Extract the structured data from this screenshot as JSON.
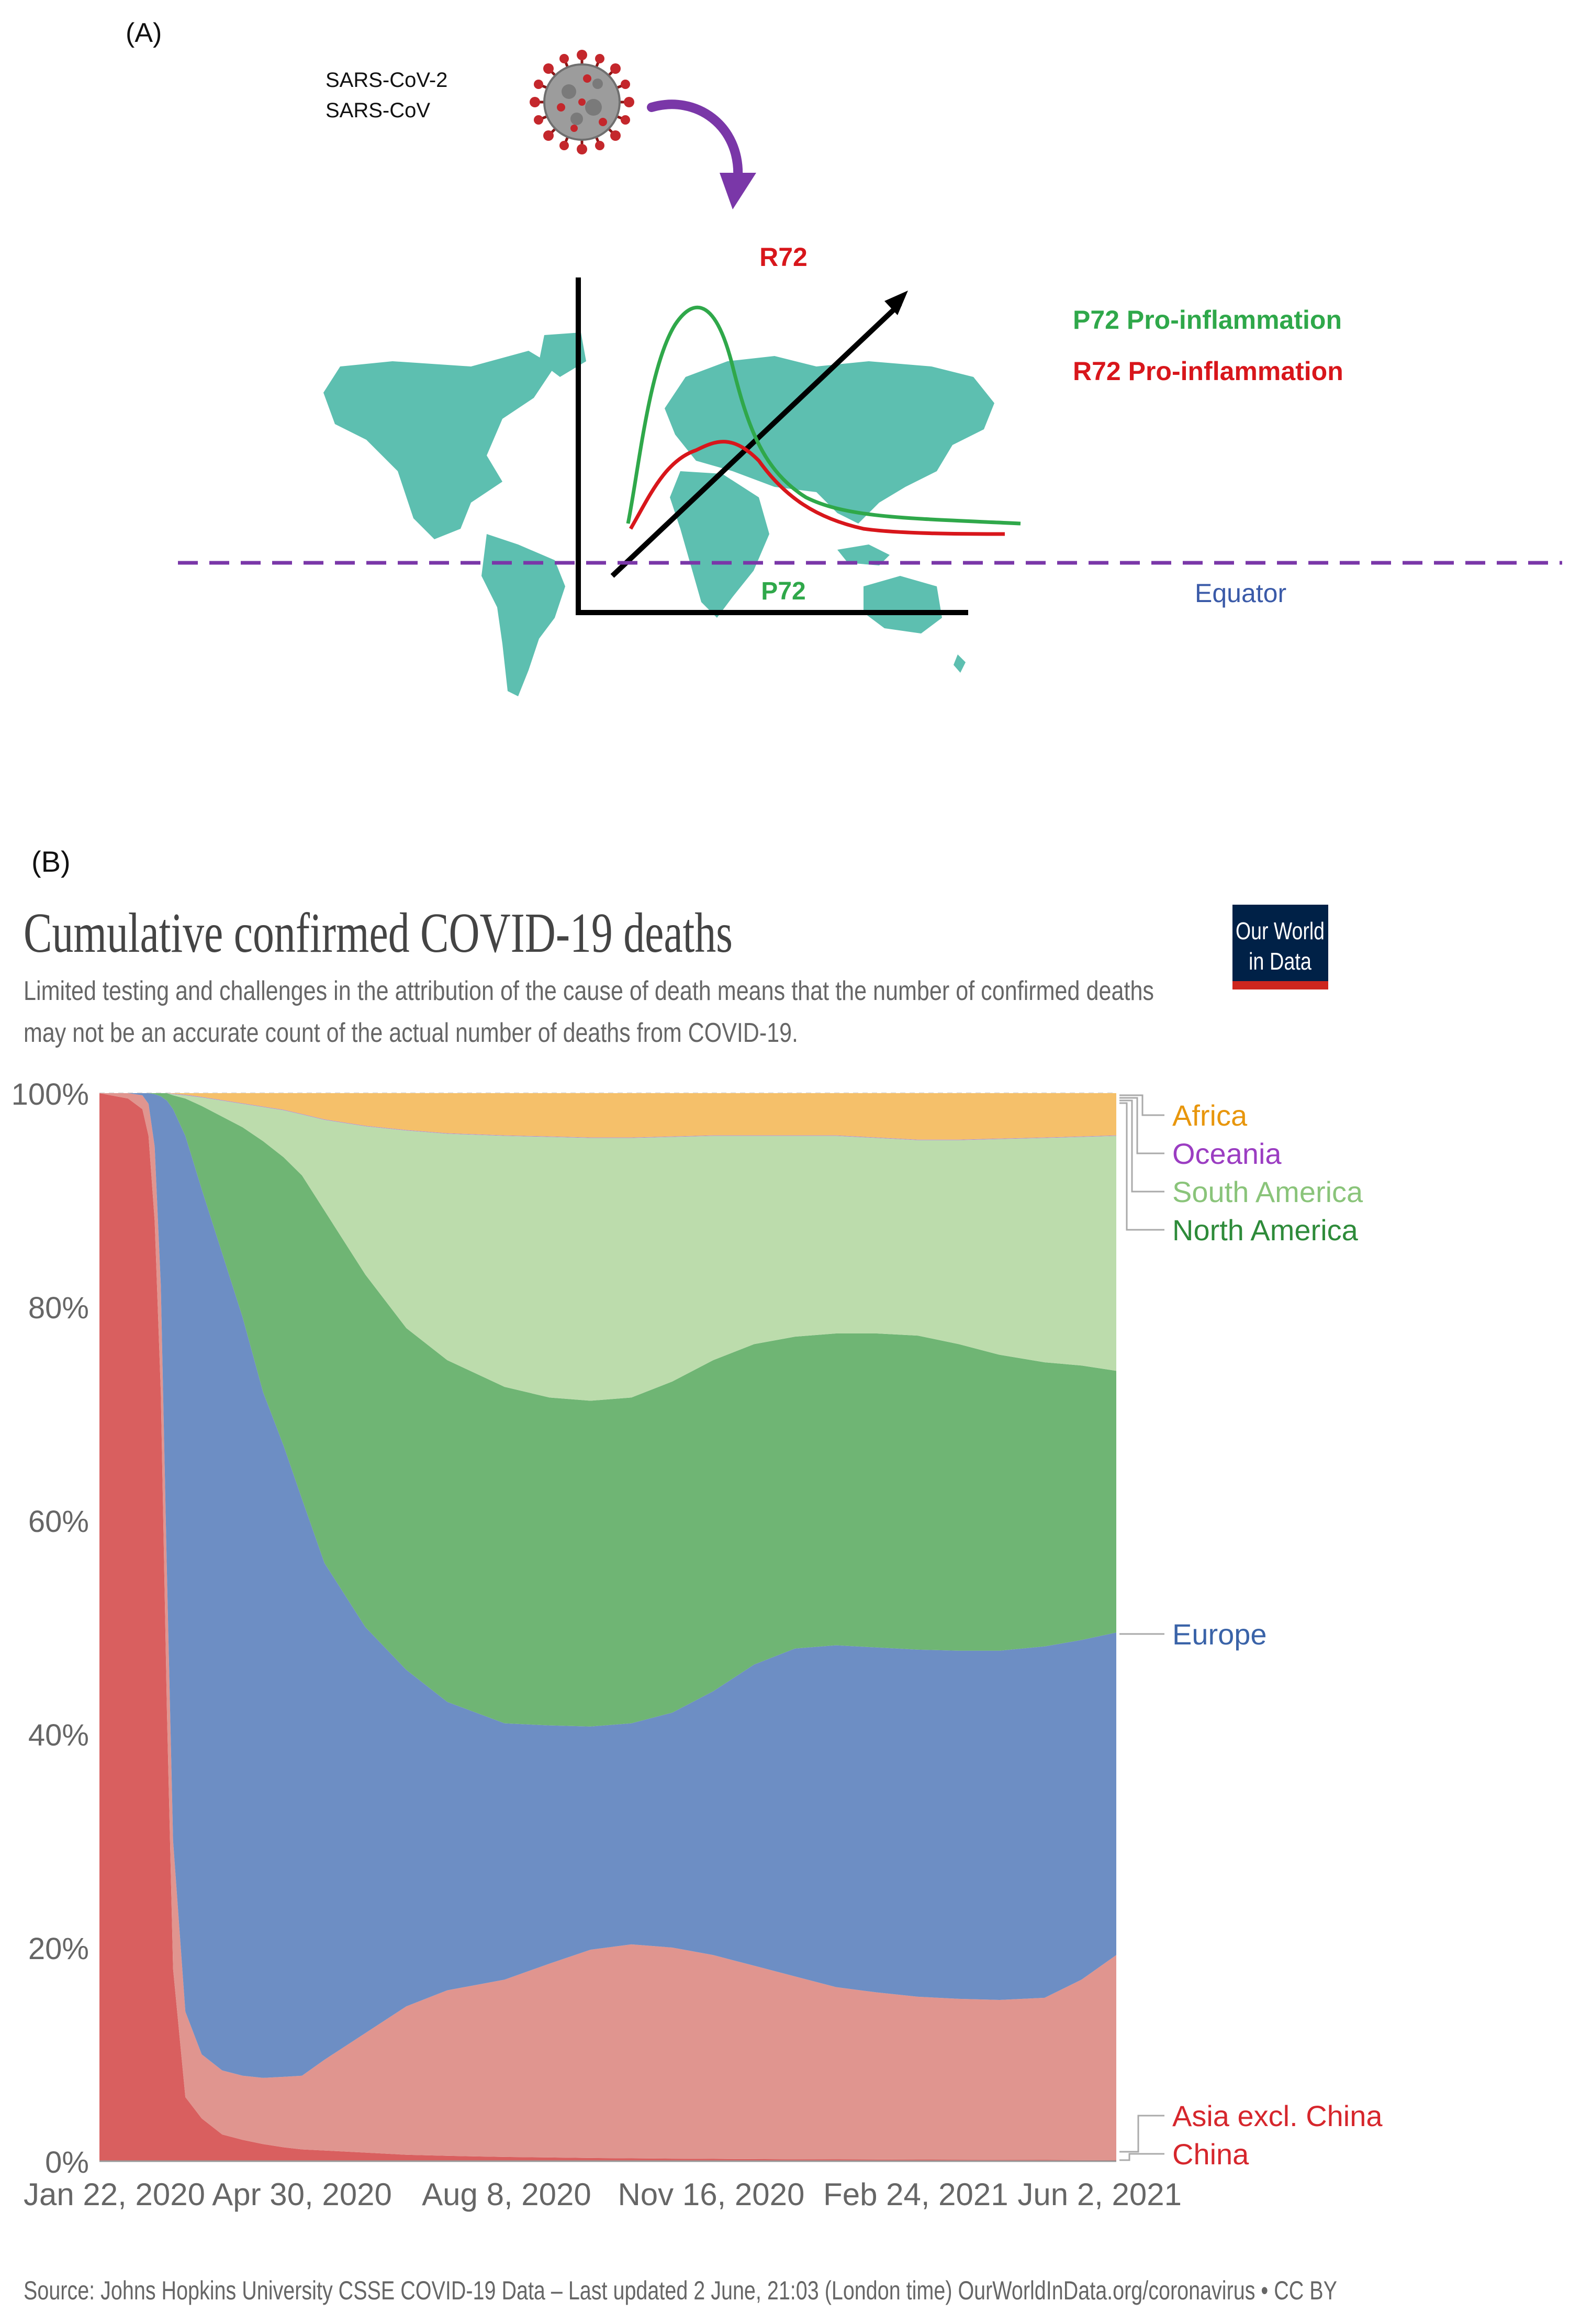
{
  "panel_a": {
    "label": "(A)",
    "virus_names": [
      "SARS-CoV-2",
      "SARS-CoV"
    ],
    "r72_label": "R72",
    "p72_label": "P72",
    "legend_p72": "P72 Pro-inflammation",
    "legend_r72": "R72 Pro-inflammation",
    "equator_label": "Equator",
    "colors": {
      "green": "#2fa84a",
      "red": "#d8161b",
      "purple": "#7a37a8",
      "map": "#5dbfb0",
      "equator": "#3a5aa8"
    }
  },
  "panel_b": {
    "label": "(B)",
    "logo_line1": "Our World",
    "logo_line2": "in Data",
    "source": "Source: Johns Hopkins University CSSE COVID-19 Data – Last updated 2 June, 21:03 (London time) OurWorldInData.org/coronavirus • CC BY"
  },
  "chart_data": {
    "type": "area",
    "stacked": true,
    "normalized": true,
    "title": "Cumulative confirmed COVID-19 deaths",
    "subtitle_lines": [
      "Limited testing and challenges in the attribution of the cause of death means that the number of confirmed deaths",
      "may not be an accurate count of the actual number of deaths from COVID-19."
    ],
    "x_days": [
      0,
      14,
      21,
      24,
      27,
      30,
      33,
      36,
      42,
      50,
      60,
      70,
      80,
      90,
      99,
      110,
      130,
      150,
      170,
      198,
      220,
      240,
      260,
      280,
      300,
      320,
      340,
      360,
      380,
      400,
      420,
      440,
      462,
      480,
      497
    ],
    "x_ticks": [
      {
        "day": 0,
        "label": "Jan 22, 2020"
      },
      {
        "day": 99,
        "label": "Apr 30, 2020"
      },
      {
        "day": 199,
        "label": "Aug 8, 2020"
      },
      {
        "day": 299,
        "label": "Nov 16, 2020"
      },
      {
        "day": 399,
        "label": "Feb 24, 2021"
      },
      {
        "day": 497,
        "label": "Jun 2, 2021"
      }
    ],
    "y_ticks": [
      "0%",
      "20%",
      "40%",
      "60%",
      "80%",
      "100%"
    ],
    "ylim": [
      0,
      100
    ],
    "series": [
      {
        "name": "China",
        "color": "#d95f5f",
        "label_color": "#d6262c",
        "cumulative": [
          100,
          99.5,
          98.5,
          96,
          88,
          72,
          42,
          18,
          6,
          4,
          2.5,
          2.0,
          1.6,
          1.3,
          1.1,
          1.0,
          0.8,
          0.6,
          0.5,
          0.4,
          0.35,
          0.3,
          0.27,
          0.24,
          0.22,
          0.2,
          0.18,
          0.17,
          0.16,
          0.15,
          0.14,
          0.13,
          0.12,
          0.11,
          0.1
        ]
      },
      {
        "name": "Asia excl. China",
        "color": "#e0958f",
        "label_color": "#d6262c",
        "cumulative": [
          100,
          100,
          99.8,
          99,
          95,
          82,
          55,
          30,
          14,
          10,
          8.5,
          8,
          7.8,
          7.9,
          8.0,
          9.5,
          12,
          14.5,
          16,
          17,
          18.5,
          19.8,
          20.3,
          20.0,
          19.3,
          18.3,
          17.3,
          16.3,
          15.8,
          15.4,
          15.2,
          15.1,
          15.3,
          17.0,
          19.3
        ]
      },
      {
        "name": "Europe",
        "color": "#6d8ec4",
        "label_color": "#3a63a8",
        "cumulative": [
          100,
          100,
          100,
          100,
          99.9,
          99.7,
          99.3,
          98.5,
          96,
          91,
          85,
          79,
          72,
          67,
          62,
          56,
          50,
          46,
          43,
          41,
          40.8,
          40.7,
          41,
          42,
          44,
          46.5,
          48,
          48.3,
          48.1,
          47.9,
          47.8,
          47.8,
          48.2,
          48.8,
          49.5
        ]
      },
      {
        "name": "North America",
        "color": "#6fb574",
        "label_color": "#2e8b3a",
        "cumulative": [
          100,
          100,
          100,
          100,
          100,
          100,
          100,
          99.8,
          99.5,
          98.8,
          97.8,
          96.8,
          95.5,
          94,
          92.3,
          89,
          83,
          78,
          75,
          72.5,
          71.5,
          71.2,
          71.5,
          73,
          75,
          76.5,
          77.2,
          77.5,
          77.5,
          77.3,
          76.5,
          75.5,
          74.8,
          74.5,
          74.0
        ]
      },
      {
        "name": "South America",
        "color": "#bcdcac",
        "label_color": "#8ac47a",
        "cumulative": [
          100,
          100,
          100,
          100,
          100,
          100,
          100,
          99.9,
          99.8,
          99.6,
          99.3,
          99.0,
          98.7,
          98.4,
          98.0,
          97.5,
          96.9,
          96.5,
          96.2,
          96.0,
          95.9,
          95.8,
          95.8,
          95.9,
          96.0,
          96.0,
          96.0,
          96.0,
          95.8,
          95.6,
          95.6,
          95.7,
          95.8,
          95.9,
          96.0
        ]
      },
      {
        "name": "Oceania",
        "color": "#b28ad0",
        "label_color": "#9b3dc2",
        "cumulative": [
          100,
          100,
          100,
          100,
          100,
          100,
          100,
          99.95,
          99.85,
          99.65,
          99.35,
          99.05,
          98.75,
          98.45,
          98.05,
          97.55,
          96.95,
          96.55,
          96.25,
          96.05,
          95.95,
          95.85,
          95.85,
          95.95,
          96.05,
          96.05,
          96.05,
          96.05,
          95.85,
          95.65,
          95.65,
          95.75,
          95.85,
          95.95,
          96.05
        ]
      },
      {
        "name": "Africa",
        "color": "#f5c06a",
        "label_color": "#e8960c",
        "cumulative": [
          100,
          100,
          100,
          100,
          100,
          100,
          100,
          100,
          100,
          100,
          100,
          100,
          100,
          100,
          100,
          100,
          100,
          100,
          100,
          100,
          100,
          100,
          100,
          100,
          100,
          100,
          100,
          100,
          100,
          100,
          100,
          100,
          100,
          100,
          100
        ]
      }
    ],
    "legend": [
      "Africa",
      "Oceania",
      "South America",
      "North America",
      "Europe",
      "Asia excl. China",
      "China"
    ]
  }
}
